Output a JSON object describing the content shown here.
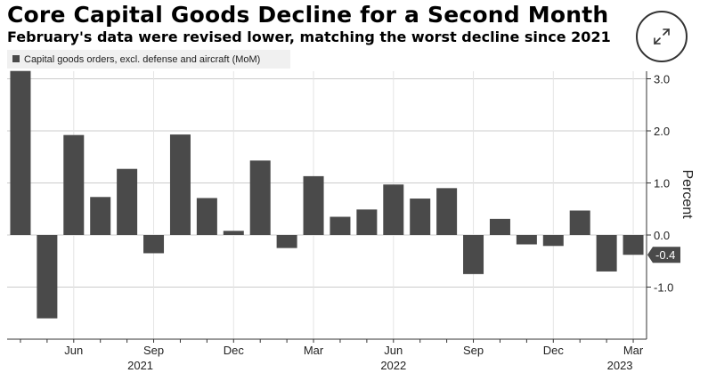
{
  "title": "Core Capital Goods Decline for a Second Month",
  "subtitle": "February's data were revised lower, matching the worst decline since 2021",
  "expand_icon": "expand-arrows-icon",
  "colors": {
    "bar": "#4a4a4a",
    "grid": "#cccccc",
    "axis": "#333333",
    "last_label_bg": "#4a4a4a"
  },
  "chart_data": {
    "type": "bar",
    "title": "Core Capital Goods Decline for a Second Month",
    "legend": "Capital goods orders, excl. defense and aircraft (MoM)",
    "ylabel": "Percent",
    "ylim": [
      -2.0,
      3.2
    ],
    "yticks": [
      3.0,
      2.0,
      1.0,
      0.0,
      -1.0
    ],
    "ytick_labels": [
      "3.0",
      "2.0",
      "1.0",
      "0.0",
      "-1.0"
    ],
    "categories": [
      "Apr 2021",
      "May 2021",
      "Jun 2021",
      "Jul 2021",
      "Aug 2021",
      "Sep 2021",
      "Oct 2021",
      "Nov 2021",
      "Dec 2021",
      "Jan 2022",
      "Feb 2022",
      "Mar 2022",
      "Apr 2022",
      "May 2022",
      "Jun 2022",
      "Jul 2022",
      "Aug 2022",
      "Sep 2022",
      "Oct 2022",
      "Nov 2022",
      "Dec 2022",
      "Jan 2023",
      "Feb 2023",
      "Mar 2023"
    ],
    "values": [
      3.15,
      -1.6,
      1.92,
      0.73,
      1.27,
      -0.35,
      1.93,
      0.71,
      0.08,
      1.43,
      -0.25,
      1.13,
      0.35,
      0.49,
      0.97,
      0.7,
      0.9,
      -0.75,
      0.31,
      -0.18,
      -0.21,
      0.47,
      -0.7,
      -0.38
    ],
    "last_value_label": "-0.4",
    "xtick_labels": [
      {
        "label": "Jun",
        "index": 2
      },
      {
        "label": "Sep",
        "index": 5
      },
      {
        "label": "Dec",
        "index": 8
      },
      {
        "label": "Mar",
        "index": 11
      },
      {
        "label": "Jun",
        "index": 14
      },
      {
        "label": "Sep",
        "index": 17
      },
      {
        "label": "Dec",
        "index": 20
      },
      {
        "label": "Mar",
        "index": 23
      }
    ],
    "year_labels": [
      {
        "label": "2021",
        "index": 4.5
      },
      {
        "label": "2022",
        "index": 14
      },
      {
        "label": "2023",
        "index": 22.5
      }
    ]
  }
}
